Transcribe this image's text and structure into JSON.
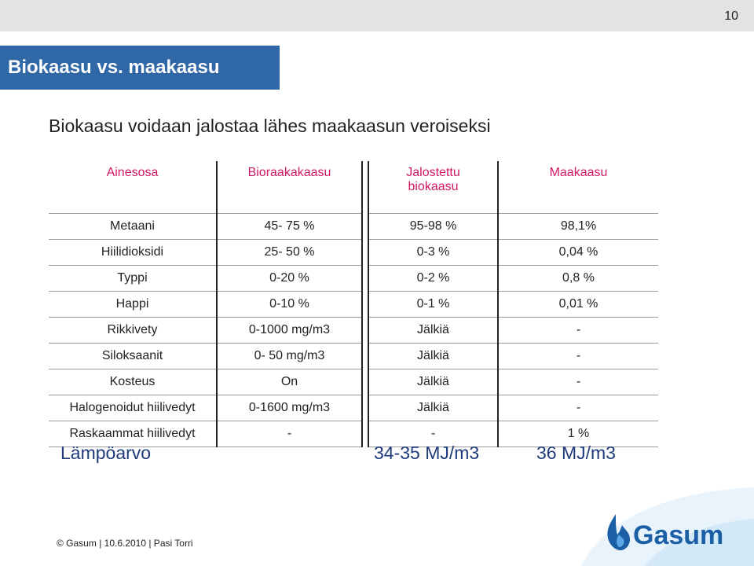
{
  "page_number": "10",
  "title": "Biokaasu vs. maakaasu",
  "subtitle": "Biokaasu voidaan jalostaa lähes maakaasun veroiseksi",
  "table": {
    "headers": [
      "Ainesosa",
      "Bioraakakaasu",
      "Jalostettu biokaasu",
      "Maakaasu"
    ],
    "header_jalostettu_line1": "Jalostettu",
    "header_jalostettu_line2": "biokaasu",
    "rows": [
      [
        "Metaani",
        "45- 75 %",
        "95-98 %",
        "98,1%"
      ],
      [
        "Hiilidioksidi",
        "25- 50 %",
        "0-3 %",
        "0,04 %"
      ],
      [
        "Typpi",
        "0-20 %",
        "0-2 %",
        "0,8 %"
      ],
      [
        "Happi",
        "0-10 %",
        "0-1 %",
        "0,01 %"
      ],
      [
        "Rikkivety",
        "0-1000 mg/m3",
        "Jälkiä",
        "-"
      ],
      [
        "Siloksaanit",
        "0- 50 mg/m3",
        "Jälkiä",
        "-"
      ],
      [
        "Kosteus",
        "On",
        "Jälkiä",
        "-"
      ],
      [
        "Halogenoidut hiilivedyt",
        "0-1600 mg/m3",
        "Jälkiä",
        "-"
      ],
      [
        "Raskaammat hiilivedyt",
        "-",
        "-",
        "1 %"
      ]
    ]
  },
  "summary": {
    "label": "Lämpöarvo",
    "jalostettu": "34-35 MJ/m3",
    "maakaasu": "36 MJ/m3"
  },
  "footer": "© Gasum | 10.6.2010  | Pasi Torri",
  "logo_text": "Gasum",
  "colors": {
    "title_bg": "#2f67a7",
    "header_text": "#d21766",
    "logo_blue": "#1a5ea6"
  },
  "icons": [
    "gasum-flame-logo-icon"
  ]
}
